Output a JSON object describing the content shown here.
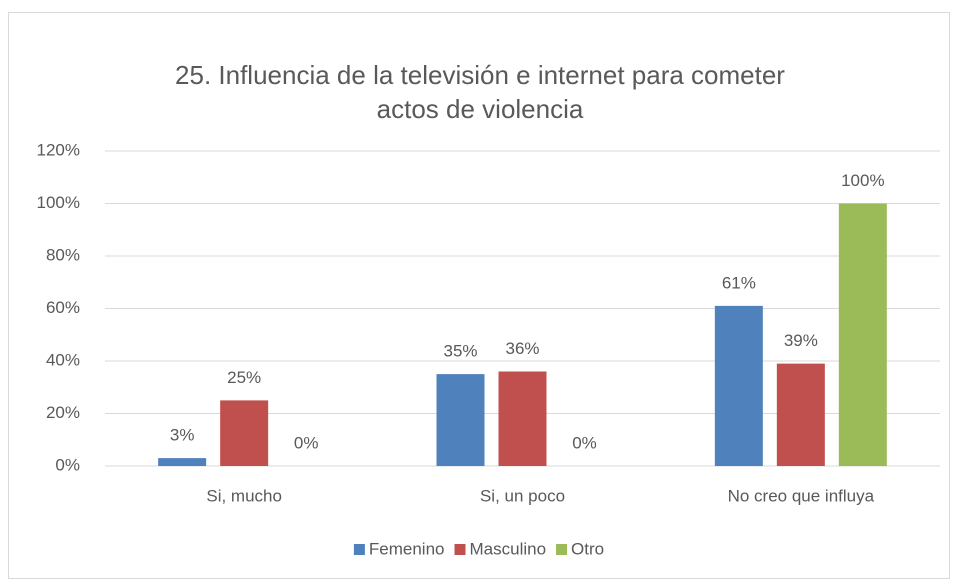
{
  "chart_data": {
    "type": "bar",
    "title": "25. Influencia de la televisión e internet para cometer actos de violencia",
    "categories": [
      "Si, mucho",
      "Si, un poco",
      "No creo que influya"
    ],
    "series": [
      {
        "name": "Femenino",
        "color": "#4f81bd",
        "values": [
          3,
          35,
          61
        ],
        "value_labels": [
          "3%",
          "35%",
          "61%"
        ]
      },
      {
        "name": "Masculino",
        "color": "#c0504d",
        "values": [
          25,
          36,
          39
        ],
        "value_labels": [
          "25%",
          "36%",
          "39%"
        ]
      },
      {
        "name": "Otro",
        "color": "#9bbb59",
        "values": [
          0,
          0,
          100
        ],
        "value_labels": [
          "0%",
          "0%",
          "100%"
        ]
      }
    ],
    "ylim": [
      0,
      120
    ],
    "yticks": [
      {
        "value": 0,
        "label": "0%"
      },
      {
        "value": 20,
        "label": "20%"
      },
      {
        "value": 40,
        "label": "40%"
      },
      {
        "value": 60,
        "label": "60%"
      },
      {
        "value": 80,
        "label": "80%"
      },
      {
        "value": 100,
        "label": "100%"
      },
      {
        "value": 120,
        "label": "120%"
      }
    ],
    "grid": true,
    "legend": "bottom"
  }
}
